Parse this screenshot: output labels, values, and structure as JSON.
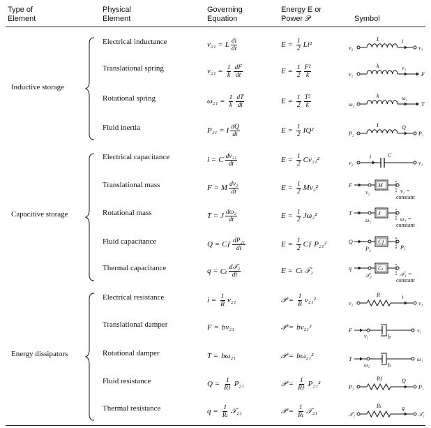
{
  "headers": {
    "type": "Type of\nElement",
    "physical": "Physical\nElement",
    "governing": "Governing\nEquation",
    "energy": "Energy E or\nPower 𝒫",
    "symbol": "Symbol"
  },
  "groups": [
    {
      "name": "Inductive storage"
    },
    {
      "name": "Capacitive storage"
    },
    {
      "name": "Energy dissipators"
    }
  ],
  "rows": [
    {
      "element": "Electrical inductance",
      "eq": {
        "lhs": "v₂₁ =",
        "pre": "L",
        "num": "di",
        "den": "dt",
        "post": ""
      },
      "en": {
        "lhs": "E =",
        "pre": "",
        "num": "1",
        "den": "2",
        "post": "Li²"
      },
      "sym": {
        "kind": "spring",
        "left": "v₂",
        "right": "v₁",
        "top": "L",
        "arrow": "i"
      }
    },
    {
      "element": "Translational spring",
      "eq": {
        "lhs": "v₂₁ =",
        "pre": "",
        "num": "1",
        "den": "k",
        "post": ""
      },
      "eq2": {
        "num": "dF",
        "den": "dt"
      },
      "en": {
        "lhs": "E =",
        "pre": "",
        "num": "1",
        "den": "2",
        "post": ""
      },
      "en2": {
        "num": "F²",
        "den": "k"
      },
      "sym": {
        "kind": "spring",
        "left": "v₂",
        "right": "F",
        "top": "k",
        "arrow": "v₁"
      }
    },
    {
      "element": "Rotational spring",
      "eq": {
        "lhs": "ω₂₁ =",
        "pre": "",
        "num": "1",
        "den": "k",
        "post": ""
      },
      "eq2": {
        "num": "dT",
        "den": "dt"
      },
      "en": {
        "lhs": "E =",
        "pre": "",
        "num": "1",
        "den": "2",
        "post": ""
      },
      "en2": {
        "num": "T²",
        "den": "k"
      },
      "sym": {
        "kind": "spring",
        "left": "ω₂",
        "right": "T",
        "top": "k",
        "arrow": "ω₁"
      }
    },
    {
      "element": "Fluid inertia",
      "eq": {
        "lhs": "P₂₁ =",
        "pre": "I",
        "num": "dQ",
        "den": "dt",
        "post": ""
      },
      "en": {
        "lhs": "E =",
        "pre": "",
        "num": "1",
        "den": "2",
        "post": "IQ²"
      },
      "sym": {
        "kind": "spring",
        "left": "P₂",
        "right": "P₁",
        "top": "I",
        "arrow": "Q"
      }
    },
    {
      "element": "Electrical capacitance",
      "eq": {
        "lhs": "i =",
        "pre": "C",
        "num": "dv₂₁",
        "den": "dt",
        "post": ""
      },
      "en": {
        "lhs": "E =",
        "pre": "",
        "num": "1",
        "den": "2",
        "post": "Cv₂₁²"
      },
      "sym": {
        "kind": "cap",
        "left": "v₂",
        "right": "v₁",
        "top": "C",
        "arrow": "i"
      }
    },
    {
      "element": "Translational mass",
      "eq": {
        "lhs": "F =",
        "pre": "M",
        "num": "dv₂",
        "den": "dt",
        "post": ""
      },
      "en": {
        "lhs": "E =",
        "pre": "",
        "num": "1",
        "den": "2",
        "post": "Mv₂²"
      },
      "sym": {
        "kind": "mass",
        "left": "F",
        "box": "M",
        "sub": "v₂",
        "right": "v₁ =",
        "note": "constant"
      }
    },
    {
      "element": "Rotational mass",
      "eq": {
        "lhs": "T =",
        "pre": "J",
        "num": "dω₂",
        "den": "dt",
        "post": ""
      },
      "en": {
        "lhs": "E =",
        "pre": "",
        "num": "1",
        "den": "2",
        "post": "Jω₂²"
      },
      "sym": {
        "kind": "mass",
        "left": "T",
        "box": "J",
        "sub": "ω₂",
        "right": "ω₁ =",
        "note": "constant"
      }
    },
    {
      "element": "Fluid capacitance",
      "eq": {
        "lhs": "Q =",
        "pre": "C_f",
        "num": "dP₂₁",
        "den": "dt",
        "post": ""
      },
      "en": {
        "lhs": "E =",
        "pre": "",
        "num": "1",
        "den": "2",
        "post": "C_f P₂₁²"
      },
      "sym": {
        "kind": "mass",
        "left": "Q",
        "box": "C_f",
        "sub": "P₂",
        "right": "P₁",
        "note": ""
      }
    },
    {
      "element": "Thermal capacitance",
      "eq": {
        "lhs": "q =",
        "pre": "C_t",
        "num": "d𝒯₂",
        "den": "dt",
        "post": ""
      },
      "en": {
        "lhs": "E =",
        "pre": "",
        "num": "",
        "den": "",
        "post": "C_t 𝒯₂"
      },
      "sym": {
        "kind": "mass",
        "left": "q",
        "box": "C_t",
        "sub": "𝒯₂",
        "right": "𝒯₁ =",
        "note": "constant"
      }
    },
    {
      "element": "Electrical resistance",
      "eq": {
        "lhs": "i =",
        "pre": "",
        "num": "1",
        "den": "R",
        "post": "v₂₁"
      },
      "en": {
        "lhs": "𝒫 =",
        "pre": "",
        "num": "1",
        "den": "R",
        "post": "v₂₁²"
      },
      "sym": {
        "kind": "resistor",
        "left": "v₂",
        "right": "v₁",
        "top": "R",
        "arrow": "i"
      }
    },
    {
      "element": "Translational damper",
      "eq": {
        "lhs": "F =",
        "pre": "",
        "num": "",
        "den": "",
        "post": "bv₂₁"
      },
      "en": {
        "lhs": "𝒫 =",
        "pre": "",
        "num": "",
        "den": "",
        "post": "bv₂₁²"
      },
      "sym": {
        "kind": "damper",
        "left": "F",
        "sub": "v₂",
        "right": "v₁",
        "b": "b"
      }
    },
    {
      "element": "Rotational damper",
      "eq": {
        "lhs": "T =",
        "pre": "",
        "num": "",
        "den": "",
        "post": "bω₂₁"
      },
      "en": {
        "lhs": "𝒫 =",
        "pre": "",
        "num": "",
        "den": "",
        "post": "bω₂₁²"
      },
      "sym": {
        "kind": "damper",
        "left": "T",
        "sub": "ω₂",
        "right": "ω₁",
        "b": "b"
      }
    },
    {
      "element": "Fluid resistance",
      "eq": {
        "lhs": "Q =",
        "pre": "",
        "num": "1",
        "den": "R_f",
        "post": "P₂₁"
      },
      "en": {
        "lhs": "𝒫 =",
        "pre": "",
        "num": "1",
        "den": "R_f",
        "post": "P₂₁²"
      },
      "sym": {
        "kind": "resistor",
        "left": "P₂",
        "right": "P₁",
        "top": "R_f",
        "arrow": "Q"
      }
    },
    {
      "element": "Thermal resistance",
      "eq": {
        "lhs": "q =",
        "pre": "",
        "num": "1",
        "den": "R_t",
        "post": "𝒯₂₁"
      },
      "en": {
        "lhs": "𝒫 =",
        "pre": "",
        "num": "1",
        "den": "R_t",
        "post": "𝒯₂₁"
      },
      "sym": {
        "kind": "resistor",
        "left": "𝒯₂",
        "right": "𝒯₁",
        "top": "R_t",
        "arrow": "q"
      }
    }
  ]
}
